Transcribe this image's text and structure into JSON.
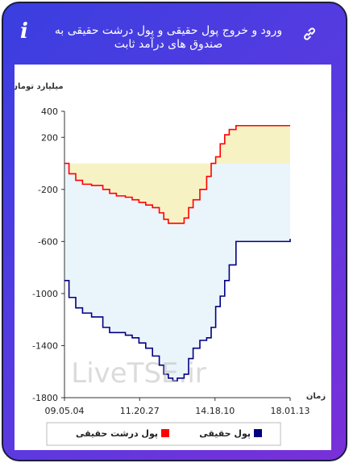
{
  "header": {
    "title": "ورود و خروج پول حقیقی و پول درشت حقیقی به صندوق های درآمد ثابت",
    "info_icon": "info-icon",
    "link_icon": "link-icon"
  },
  "watermark": "LiveTSE.ir",
  "colors": {
    "header_gradient_start": "#3a3fe0",
    "header_gradient_end": "#7a2fd8",
    "real_money_line": "#000080",
    "big_real_money_line": "#ff0000",
    "negative_fill": "#eaf4fb",
    "positive_fill": "#f7f2c4"
  },
  "chart_data": {
    "type": "line",
    "ylabel": "میلیارد تومان",
    "xlabel": "زمان",
    "ylim": [
      -1800,
      400
    ],
    "yticks": [
      "400",
      "200",
      "-200",
      "-600",
      "-1000",
      "-1400",
      "-1800"
    ],
    "ytick_values": [
      400,
      200,
      -200,
      -600,
      -1000,
      -1400,
      -1800
    ],
    "xticks": [
      "09.05.04",
      "11.20.27",
      "14.18.10",
      "18.01.13"
    ],
    "xtick_positions": [
      0,
      0.333,
      0.667,
      1
    ],
    "grid": false,
    "legend": "bottom",
    "series": [
      {
        "name": "پول حقیقی",
        "color": "#000080",
        "x": [
          0,
          0.02,
          0.05,
          0.08,
          0.12,
          0.17,
          0.2,
          0.23,
          0.27,
          0.3,
          0.33,
          0.36,
          0.39,
          0.42,
          0.44,
          0.46,
          0.48,
          0.5,
          0.53,
          0.55,
          0.57,
          0.6,
          0.63,
          0.65,
          0.67,
          0.69,
          0.71,
          0.73,
          0.76,
          1
        ],
        "y": [
          -900,
          -1030,
          -1110,
          -1150,
          -1180,
          -1260,
          -1300,
          -1300,
          -1320,
          -1340,
          -1380,
          -1420,
          -1480,
          -1550,
          -1620,
          -1650,
          -1670,
          -1650,
          -1620,
          -1500,
          -1420,
          -1360,
          -1340,
          -1260,
          -1100,
          -1020,
          -900,
          -780,
          -600,
          -580
        ]
      },
      {
        "name": "پول درشت حقیقی",
        "color": "#ff0000",
        "x": [
          0,
          0.02,
          0.05,
          0.08,
          0.12,
          0.17,
          0.2,
          0.23,
          0.27,
          0.3,
          0.33,
          0.36,
          0.39,
          0.42,
          0.44,
          0.46,
          0.48,
          0.5,
          0.53,
          0.55,
          0.57,
          0.6,
          0.63,
          0.65,
          0.67,
          0.69,
          0.71,
          0.73,
          0.76,
          1
        ],
        "y": [
          0,
          -80,
          -130,
          -160,
          -170,
          -200,
          -230,
          -250,
          -260,
          -280,
          -300,
          -320,
          -340,
          -380,
          -430,
          -460,
          -460,
          -460,
          -420,
          -340,
          -280,
          -200,
          -100,
          0,
          50,
          150,
          220,
          260,
          290,
          290
        ]
      }
    ]
  }
}
